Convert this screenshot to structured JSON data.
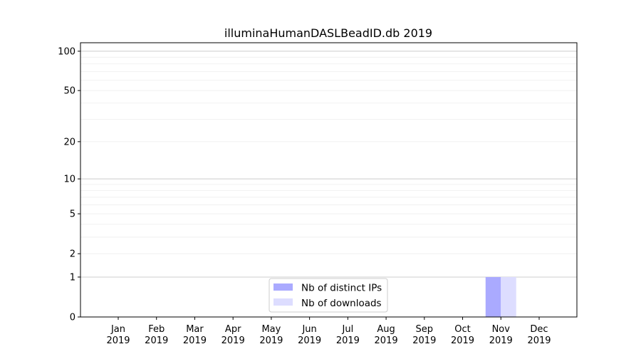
{
  "chart_data": {
    "type": "bar",
    "title": "illuminaHumanDASLBeadID.db 2019",
    "xlabel": "",
    "ylabel": "",
    "y_scale": "log(1+y)",
    "ylim": [
      0,
      116
    ],
    "yticks": [
      0,
      1,
      2,
      5,
      10,
      20,
      50,
      100
    ],
    "grid": true,
    "categories": [
      [
        "Jan",
        "2019"
      ],
      [
        "Feb",
        "2019"
      ],
      [
        "Mar",
        "2019"
      ],
      [
        "Apr",
        "2019"
      ],
      [
        "May",
        "2019"
      ],
      [
        "Jun",
        "2019"
      ],
      [
        "Jul",
        "2019"
      ],
      [
        "Aug",
        "2019"
      ],
      [
        "Sep",
        "2019"
      ],
      [
        "Oct",
        "2019"
      ],
      [
        "Nov",
        "2019"
      ],
      [
        "Dec",
        "2019"
      ]
    ],
    "series": [
      {
        "name": "Nb of distinct IPs",
        "color": "#aaaaff",
        "values": [
          0,
          0,
          0,
          0,
          0,
          0,
          0,
          0,
          0,
          0,
          1,
          0
        ]
      },
      {
        "name": "Nb of downloads",
        "color": "#ddddff",
        "values": [
          0,
          0,
          0,
          0,
          0,
          0,
          0,
          0,
          0,
          0,
          1,
          0
        ]
      }
    ],
    "legend": "bottom-center"
  }
}
